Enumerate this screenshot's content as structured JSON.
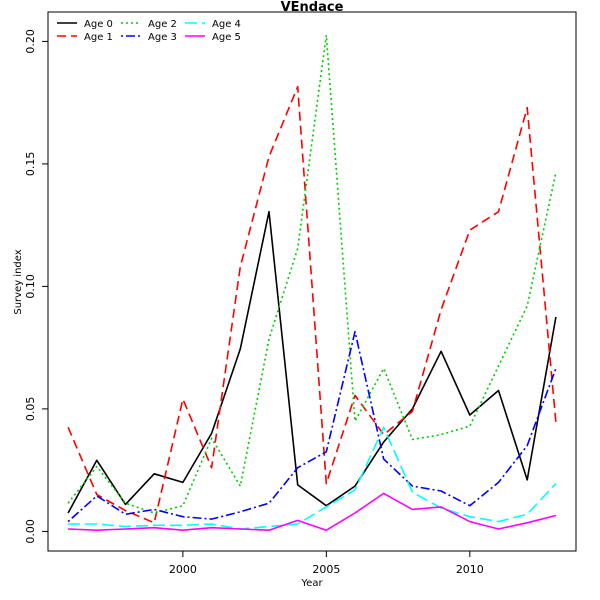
{
  "chart_data": {
    "type": "line",
    "title": "VEndace",
    "xlabel": "Year",
    "ylabel": "Survey index",
    "xlim": [
      1995.3,
      2013.7
    ],
    "ylim": [
      -0.008,
      0.212
    ],
    "x_ticks": [
      2000,
      2005,
      2010
    ],
    "y_ticks": [
      0.0,
      0.05,
      0.1,
      0.15,
      0.2
    ],
    "y_tick_labels": [
      "0.00",
      "0.05",
      "0.10",
      "0.15",
      "0.20"
    ],
    "grid": false,
    "legend_position": "top-left",
    "x": [
      1996,
      1997,
      1998,
      1999,
      2000,
      2001,
      2002,
      2003,
      2004,
      2005,
      2006,
      2007,
      2008,
      2009,
      2010,
      2011,
      2012,
      2013
    ],
    "series": [
      {
        "name": "Age 0",
        "color": "#000000",
        "dash": "solid",
        "values": [
          0.0075,
          0.029,
          0.011,
          0.0235,
          0.02,
          0.04,
          0.0745,
          0.1305,
          0.019,
          0.0105,
          0.0185,
          0.0365,
          0.05,
          0.0735,
          0.0475,
          0.0575,
          0.021,
          0.0875
        ]
      },
      {
        "name": "Age 1",
        "color": "#ff0000",
        "dash": "dashed",
        "values": [
          0.0425,
          0.015,
          0.0085,
          0.0035,
          0.054,
          0.026,
          0.108,
          0.153,
          0.1815,
          0.0195,
          0.0555,
          0.0395,
          0.049,
          0.0905,
          0.123,
          0.1305,
          0.173,
          0.0445
        ]
      },
      {
        "name": "Age 2",
        "color": "#00cd00",
        "dash": "dotted",
        "values": [
          0.0115,
          0.0265,
          0.0115,
          0.0075,
          0.0105,
          0.038,
          0.0185,
          0.0785,
          0.1155,
          0.2025,
          0.045,
          0.0665,
          0.0375,
          0.0395,
          0.043,
          0.0675,
          0.092,
          0.1465
        ]
      },
      {
        "name": "Age 3",
        "color": "#0000ff",
        "dash": "dotdash",
        "values": [
          0.004,
          0.0145,
          0.007,
          0.009,
          0.006,
          0.005,
          0.008,
          0.0115,
          0.026,
          0.0325,
          0.0815,
          0.0295,
          0.0185,
          0.0165,
          0.0105,
          0.02,
          0.035,
          0.0665
        ]
      },
      {
        "name": "Age 4",
        "color": "#00ffff",
        "dash": "longdash",
        "values": [
          0.003,
          0.003,
          0.002,
          0.0025,
          0.0025,
          0.003,
          0.001,
          0.002,
          0.003,
          0.01,
          0.017,
          0.0425,
          0.016,
          0.0095,
          0.006,
          0.004,
          0.007,
          0.0195
        ]
      },
      {
        "name": "Age 5",
        "color": "#ff00ff",
        "dash": "solid",
        "values": [
          0.001,
          0.0005,
          0.001,
          0.0015,
          0.0005,
          0.0015,
          0.001,
          0.0005,
          0.0045,
          0.0005,
          0.0075,
          0.0155,
          0.009,
          0.01,
          0.004,
          0.001,
          0.0035,
          0.0065
        ]
      }
    ]
  }
}
